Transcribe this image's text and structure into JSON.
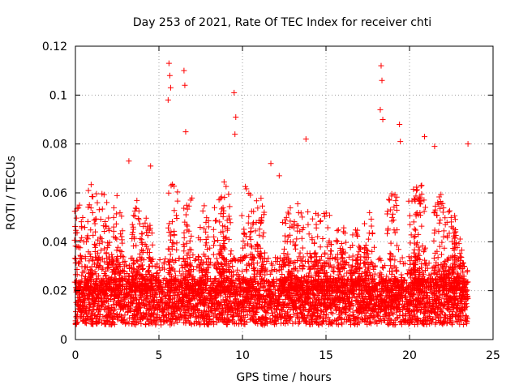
{
  "chart_data": {
    "type": "scatter",
    "title": "Day 253 of 2021, Rate Of TEC Index for receiver chti",
    "xlabel": "GPS time / hours",
    "ylabel": "ROTI / TECUs",
    "xlim": [
      0,
      25
    ],
    "ylim": [
      0,
      0.12
    ],
    "xticks": [
      "0",
      "5",
      "10",
      "15",
      "20",
      "25"
    ],
    "yticks": [
      "0",
      "0.02",
      "0.04",
      "0.06",
      "0.08",
      "0.1",
      "0.12"
    ],
    "grid": true,
    "marker": "plus",
    "color": "#ff0000",
    "time_span_hours": [
      0,
      23.5
    ],
    "sample_step_hours": 0.008,
    "background_band": [
      0.006,
      0.025
    ],
    "outliers": [
      {
        "x": 5.6,
        "y": 0.113
      },
      {
        "x": 5.65,
        "y": 0.108
      },
      {
        "x": 5.7,
        "y": 0.103
      },
      {
        "x": 5.55,
        "y": 0.098
      },
      {
        "x": 6.5,
        "y": 0.11
      },
      {
        "x": 6.55,
        "y": 0.104
      },
      {
        "x": 6.6,
        "y": 0.085
      },
      {
        "x": 9.5,
        "y": 0.101
      },
      {
        "x": 9.6,
        "y": 0.091
      },
      {
        "x": 9.55,
        "y": 0.084
      },
      {
        "x": 18.3,
        "y": 0.112
      },
      {
        "x": 18.35,
        "y": 0.106
      },
      {
        "x": 18.25,
        "y": 0.094
      },
      {
        "x": 19.4,
        "y": 0.088
      },
      {
        "x": 19.45,
        "y": 0.081
      },
      {
        "x": 13.8,
        "y": 0.082
      },
      {
        "x": 20.9,
        "y": 0.083
      },
      {
        "x": 23.5,
        "y": 0.08
      },
      {
        "x": 3.2,
        "y": 0.073
      },
      {
        "x": 4.5,
        "y": 0.071
      },
      {
        "x": 11.7,
        "y": 0.072
      },
      {
        "x": 12.2,
        "y": 0.067
      },
      {
        "x": 18.4,
        "y": 0.09
      },
      {
        "x": 21.5,
        "y": 0.079
      }
    ],
    "peaks": [
      {
        "x": 0.3,
        "y": 0.061
      },
      {
        "x": 1.0,
        "y": 0.069
      },
      {
        "x": 1.7,
        "y": 0.063
      },
      {
        "x": 2.5,
        "y": 0.06
      },
      {
        "x": 3.7,
        "y": 0.058
      },
      {
        "x": 4.3,
        "y": 0.052
      },
      {
        "x": 5.9,
        "y": 0.07
      },
      {
        "x": 6.8,
        "y": 0.065
      },
      {
        "x": 7.7,
        "y": 0.055
      },
      {
        "x": 8.6,
        "y": 0.062
      },
      {
        "x": 9.0,
        "y": 0.068
      },
      {
        "x": 10.3,
        "y": 0.066
      },
      {
        "x": 11.0,
        "y": 0.061
      },
      {
        "x": 12.6,
        "y": 0.063
      },
      {
        "x": 13.3,
        "y": 0.058
      },
      {
        "x": 14.2,
        "y": 0.062
      },
      {
        "x": 15.0,
        "y": 0.057
      },
      {
        "x": 15.9,
        "y": 0.05
      },
      {
        "x": 16.8,
        "y": 0.048
      },
      {
        "x": 17.6,
        "y": 0.056
      },
      {
        "x": 19.0,
        "y": 0.065
      },
      {
        "x": 20.3,
        "y": 0.068
      },
      {
        "x": 20.6,
        "y": 0.069
      },
      {
        "x": 21.8,
        "y": 0.062
      },
      {
        "x": 22.4,
        "y": 0.058
      },
      {
        "x": 22.9,
        "y": 0.047
      }
    ]
  }
}
